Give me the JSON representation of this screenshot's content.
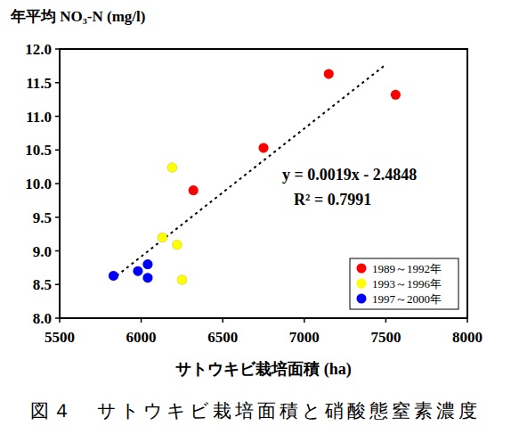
{
  "chart_data": {
    "type": "scatter",
    "title": "年平均 NO₃-N (mg/l)",
    "x_label": "サトウキビ栽培面積 (ha)",
    "caption": "図４　サトウキビ栽培面積と硝酸態窒素濃度",
    "annotations": [
      "y = 0.0019x - 2.4848",
      "R² = 0.7991"
    ],
    "xlim": [
      5500,
      8000
    ],
    "xticks": [
      5500,
      6000,
      6500,
      7000,
      7500,
      8000
    ],
    "ylim": [
      8,
      12
    ],
    "yticks": [
      {
        "value": 8,
        "label": "8.0"
      },
      {
        "value": 8.5,
        "label": "8.5"
      },
      {
        "value": 9,
        "label": "9.0"
      },
      {
        "value": 9.5,
        "label": "9.5"
      },
      {
        "value": 10,
        "label": "10.0"
      },
      {
        "value": 10.5,
        "label": "10.5"
      },
      {
        "value": 11,
        "label": "11.0"
      },
      {
        "value": 11.5,
        "label": "11.5"
      },
      {
        "value": 12,
        "label": "12.0"
      }
    ],
    "grid": false,
    "legend": "bottom-right",
    "series": [
      {
        "name": "1989～1992年",
        "color": "#ff0000",
        "marker": "circle",
        "x": [
          6320,
          6750,
          7150,
          7560
        ],
        "values": [
          9.9,
          10.53,
          11.63,
          11.32
        ]
      },
      {
        "name": "1993～1996年",
        "color": "#ffff00",
        "marker": "circle",
        "x": [
          6190,
          6130,
          6220,
          6250
        ],
        "values": [
          10.24,
          9.2,
          9.09,
          8.57
        ]
      },
      {
        "name": "1997～2000年",
        "color": "#0000ff",
        "marker": "circle",
        "x": [
          5830,
          5980,
          6040,
          6040
        ],
        "values": [
          8.63,
          8.7,
          8.8,
          8.6
        ]
      }
    ],
    "trendline": {
      "x": [
        5850,
        7500
      ],
      "values": [
        8.63,
        11.77
      ],
      "line_style": "dotted"
    }
  }
}
